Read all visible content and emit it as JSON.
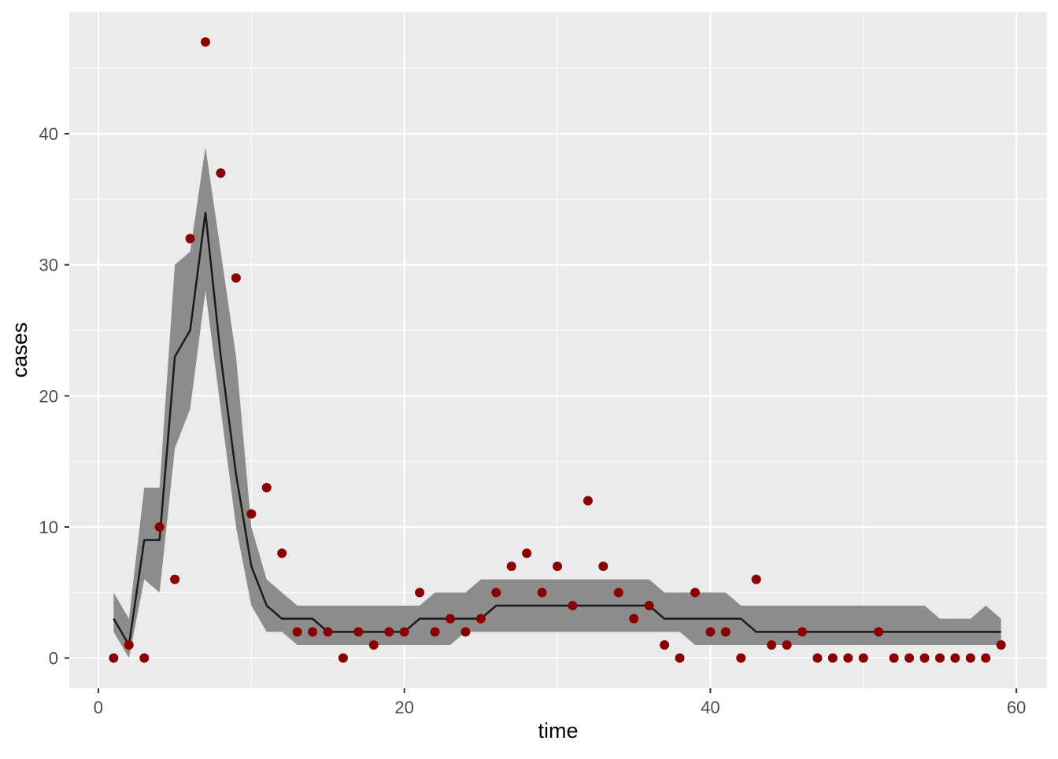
{
  "chart_data": {
    "type": "line",
    "xlabel": "time",
    "ylabel": "cases",
    "xlim": [
      -1.9,
      62
    ],
    "ylim": [
      -2.3,
      49.3
    ],
    "xticks": [
      0,
      20,
      40,
      60
    ],
    "yticks": [
      0,
      10,
      20,
      30,
      40
    ],
    "xminor": [
      10,
      30,
      50
    ],
    "yminor": [
      5,
      15,
      25,
      35,
      45
    ],
    "grid": true,
    "x": [
      1,
      2,
      3,
      4,
      5,
      6,
      7,
      8,
      9,
      10,
      11,
      12,
      13,
      14,
      15,
      16,
      17,
      18,
      19,
      20,
      21,
      22,
      23,
      24,
      25,
      26,
      27,
      28,
      29,
      30,
      31,
      32,
      33,
      34,
      35,
      36,
      37,
      38,
      39,
      40,
      41,
      42,
      43,
      44,
      45,
      46,
      47,
      48,
      49,
      50,
      51,
      52,
      53,
      54,
      55,
      56,
      57,
      58,
      59
    ],
    "band": {
      "color": "#8c8c8c",
      "upper": [
        5,
        3,
        13,
        13,
        30,
        31,
        39,
        31,
        23,
        10,
        6,
        5,
        4,
        4,
        4,
        4,
        4,
        4,
        4,
        4,
        4,
        5,
        5,
        5,
        6,
        6,
        6,
        6,
        6,
        6,
        6,
        6,
        6,
        6,
        6,
        6,
        5,
        5,
        5,
        5,
        5,
        4,
        4,
        4,
        4,
        4,
        4,
        4,
        4,
        4,
        4,
        4,
        4,
        4,
        3,
        3,
        3,
        4,
        3
      ],
      "lower": [
        2,
        0,
        6,
        5,
        16,
        19,
        28,
        19,
        10,
        4,
        2,
        2,
        1,
        1,
        1,
        1,
        1,
        1,
        1,
        1,
        1,
        1,
        1,
        2,
        2,
        2,
        2,
        2,
        2,
        2,
        2,
        2,
        2,
        2,
        2,
        2,
        2,
        2,
        1,
        1,
        1,
        1,
        1,
        1,
        1,
        1,
        1,
        1,
        1,
        1,
        1,
        1,
        1,
        1,
        1,
        1,
        1,
        1,
        1
      ]
    },
    "line": {
      "color": "#1a1a1a",
      "values": [
        3,
        1,
        9,
        9,
        23,
        25,
        34,
        23,
        14,
        7,
        4,
        3,
        3,
        3,
        2,
        2,
        2,
        2,
        2,
        2,
        3,
        3,
        3,
        3,
        3,
        4,
        4,
        4,
        4,
        4,
        4,
        4,
        4,
        4,
        4,
        4,
        3,
        3,
        3,
        3,
        3,
        3,
        2,
        2,
        2,
        2,
        2,
        2,
        2,
        2,
        2,
        2,
        2,
        2,
        2,
        2,
        2,
        2,
        2
      ]
    },
    "points": {
      "color": "#8b0000",
      "values": [
        0,
        1,
        0,
        10,
        6,
        32,
        47,
        37,
        29,
        11,
        13,
        8,
        2,
        2,
        2,
        0,
        2,
        1,
        2,
        2,
        5,
        2,
        3,
        2,
        3,
        5,
        7,
        8,
        5,
        7,
        4,
        12,
        7,
        5,
        3,
        4,
        1,
        0,
        5,
        2,
        2,
        0,
        6,
        1,
        1,
        2,
        0,
        0,
        0,
        0,
        2,
        0,
        0,
        0,
        0,
        0,
        0,
        0,
        1
      ]
    }
  }
}
